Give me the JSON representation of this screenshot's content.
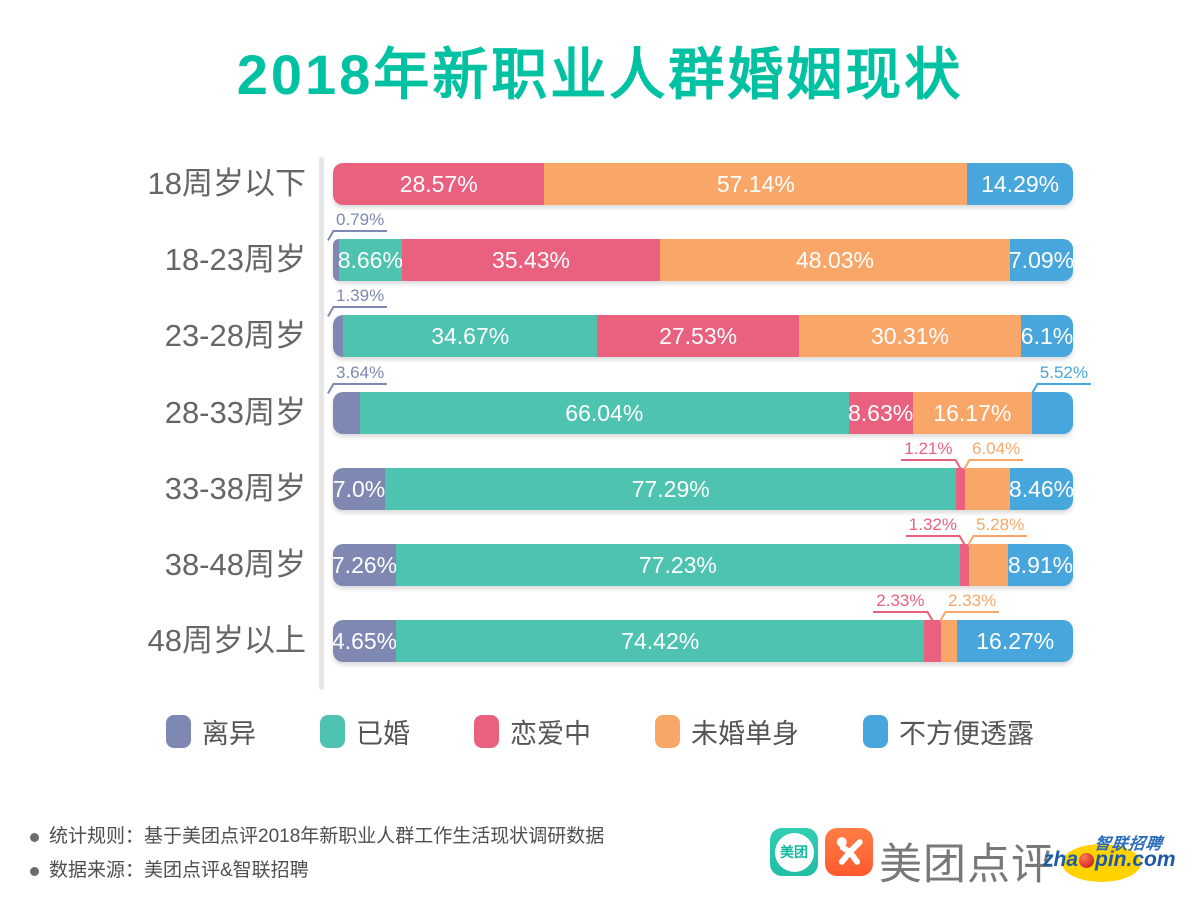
{
  "title": "2018年新职业人群婚姻现状",
  "colors": {
    "title_teal": "#00C2A2",
    "axis_line": "#E7E7E7",
    "age_label": "#666666",
    "bar_label": "#FFFFFF"
  },
  "chart_data": {
    "type": "bar",
    "stacked": true,
    "orientation": "horizontal",
    "unit": "%",
    "xlim": [
      0,
      100
    ],
    "grid": false,
    "legend_position": "bottom",
    "categories": [
      "18周岁以下",
      "18-23周岁",
      "23-28周岁",
      "28-33周岁",
      "33-38周岁",
      "38-48周岁",
      "48周岁以上"
    ],
    "series": [
      {
        "name": "离异",
        "color": "#7E88B2",
        "values": [
          0,
          0.79,
          1.39,
          3.64,
          7.0,
          7.26,
          4.65
        ]
      },
      {
        "name": "已婚",
        "color": "#4EC3B0",
        "values": [
          0,
          8.66,
          34.67,
          66.04,
          77.29,
          77.23,
          74.42
        ]
      },
      {
        "name": "恋爱中",
        "color": "#EA607F",
        "values": [
          28.57,
          35.43,
          27.53,
          8.63,
          1.21,
          1.32,
          2.33
        ]
      },
      {
        "name": "未婚单身",
        "color": "#F9A768",
        "values": [
          57.14,
          48.03,
          30.31,
          16.17,
          6.04,
          5.28,
          2.33
        ]
      },
      {
        "name": "不方便透露",
        "color": "#47A6DB",
        "values": [
          14.29,
          7.09,
          6.1,
          5.52,
          8.46,
          8.91,
          16.27
        ]
      }
    ],
    "rows": [
      {
        "label": "18周岁以下",
        "segments": [
          {
            "series": "恋爱中",
            "value": 28.57,
            "text": "28.57%",
            "label_pos": "inside"
          },
          {
            "series": "未婚单身",
            "value": 57.14,
            "text": "57.14%",
            "label_pos": "inside"
          },
          {
            "series": "不方便透露",
            "value": 14.29,
            "text": "14.29%",
            "label_pos": "inside"
          }
        ]
      },
      {
        "label": "18-23周岁",
        "segments": [
          {
            "series": "离异",
            "value": 0.79,
            "text": "0.79%",
            "label_pos": "callout",
            "anchor": "start"
          },
          {
            "series": "已婚",
            "value": 8.66,
            "text": "8.66%",
            "label_pos": "inside"
          },
          {
            "series": "恋爱中",
            "value": 35.43,
            "text": "35.43%",
            "label_pos": "inside"
          },
          {
            "series": "未婚单身",
            "value": 48.03,
            "text": "48.03%",
            "label_pos": "inside"
          },
          {
            "series": "不方便透露",
            "value": 7.09,
            "text": "7.09%",
            "label_pos": "inside"
          }
        ]
      },
      {
        "label": "23-28周岁",
        "segments": [
          {
            "series": "离异",
            "value": 1.39,
            "text": "1.39%",
            "label_pos": "callout",
            "anchor": "start"
          },
          {
            "series": "已婚",
            "value": 34.67,
            "text": "34.67%",
            "label_pos": "inside"
          },
          {
            "series": "恋爱中",
            "value": 27.53,
            "text": "27.53%",
            "label_pos": "inside"
          },
          {
            "series": "未婚单身",
            "value": 30.31,
            "text": "30.31%",
            "label_pos": "inside"
          },
          {
            "series": "不方便透露",
            "value": 6.1,
            "text": "6.1%",
            "label_pos": "inside"
          }
        ]
      },
      {
        "label": "28-33周岁",
        "segments": [
          {
            "series": "离异",
            "value": 3.64,
            "text": "3.64%",
            "label_pos": "callout",
            "anchor": "start"
          },
          {
            "series": "已婚",
            "value": 66.04,
            "text": "66.04%",
            "label_pos": "inside"
          },
          {
            "series": "恋爱中",
            "value": 8.63,
            "text": "8.63%",
            "label_pos": "inside"
          },
          {
            "series": "未婚单身",
            "value": 16.17,
            "text": "16.17%",
            "label_pos": "inside"
          },
          {
            "series": "不方便透露",
            "value": 5.52,
            "text": "5.52%",
            "label_pos": "callout",
            "anchor": "end"
          }
        ]
      },
      {
        "label": "33-38周岁",
        "segments": [
          {
            "series": "离异",
            "value": 7.0,
            "text": "7.0%",
            "label_pos": "inside"
          },
          {
            "series": "已婚",
            "value": 77.29,
            "text": "77.29%",
            "label_pos": "inside"
          },
          {
            "series": "恋爱中",
            "value": 1.21,
            "text": "1.21%",
            "label_pos": "callout",
            "anchor": "before"
          },
          {
            "series": "未婚单身",
            "value": 6.04,
            "text": "6.04%",
            "label_pos": "callout",
            "anchor": "after"
          },
          {
            "series": "不方便透露",
            "value": 8.46,
            "text": "8.46%",
            "label_pos": "inside"
          }
        ]
      },
      {
        "label": "38-48周岁",
        "segments": [
          {
            "series": "离异",
            "value": 7.26,
            "text": "7.26%",
            "label_pos": "inside"
          },
          {
            "series": "已婚",
            "value": 77.23,
            "text": "77.23%",
            "label_pos": "inside"
          },
          {
            "series": "恋爱中",
            "value": 1.32,
            "text": "1.32%",
            "label_pos": "callout",
            "anchor": "before"
          },
          {
            "series": "未婚单身",
            "value": 5.28,
            "text": "5.28%",
            "label_pos": "callout",
            "anchor": "after"
          },
          {
            "series": "不方便透露",
            "value": 8.91,
            "text": "8.91%",
            "label_pos": "inside"
          }
        ]
      },
      {
        "label": "48周岁以上",
        "segments": [
          {
            "series": "离异",
            "value": 4.65,
            "text": "4.65%",
            "label_pos": "inside"
          },
          {
            "series": "已婚",
            "value": 74.42,
            "text": "74.42%",
            "label_pos": "inside"
          },
          {
            "series": "恋爱中",
            "value": 2.33,
            "text": "2.33%",
            "label_pos": "callout",
            "anchor": "before"
          },
          {
            "series": "未婚单身",
            "value": 2.33,
            "text": "2.33%",
            "label_pos": "callout",
            "anchor": "after"
          },
          {
            "series": "不方便透露",
            "value": 16.27,
            "text": "16.27%",
            "label_pos": "inside"
          }
        ]
      }
    ]
  },
  "legend": [
    {
      "label": "离异",
      "color": "#7E88B2"
    },
    {
      "label": "已婚",
      "color": "#4EC3B0"
    },
    {
      "label": "恋爱中",
      "color": "#EA607F"
    },
    {
      "label": "未婚单身",
      "color": "#F9A768"
    },
    {
      "label": "不方便透露",
      "color": "#47A6DB"
    }
  ],
  "footer": {
    "line1": "统计规则：基于美团点评2018年新职业人群工作生活现状调研数据",
    "line2": "数据来源：美团点评&智联招聘"
  },
  "logos": {
    "meituan_icon_text": "美团",
    "brand_text": "美团点评",
    "zhaopin_top": "智联招聘",
    "zhaopin_main_left": "zha",
    "zhaopin_main_right": "pin.com"
  }
}
